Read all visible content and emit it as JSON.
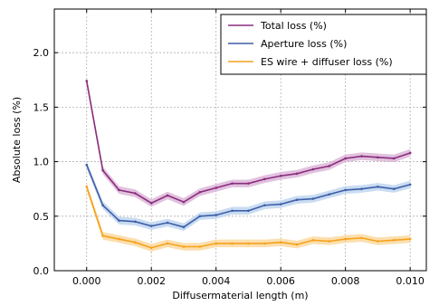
{
  "chart_data": {
    "type": "line",
    "title": "",
    "xlabel": "Diffusermaterial length (m)",
    "ylabel": "Absolute loss (%)",
    "xlim": [
      -0.001,
      0.0105
    ],
    "ylim": [
      0.0,
      2.4
    ],
    "grid": true,
    "legend_position": "top-right",
    "x_ticks": [
      0.0,
      0.002,
      0.004,
      0.006,
      0.008,
      0.01
    ],
    "x_tick_labels": [
      "0.000",
      "0.002",
      "0.004",
      "0.006",
      "0.008",
      "0.010"
    ],
    "y_ticks": [
      0.0,
      0.5,
      1.0,
      1.5,
      2.0
    ],
    "y_tick_labels": [
      "0.0",
      "0.5",
      "1.0",
      "1.5",
      "2.0"
    ],
    "x": [
      0.0,
      0.0005,
      0.001,
      0.0015,
      0.002,
      0.0025,
      0.003,
      0.0035,
      0.004,
      0.0045,
      0.005,
      0.0055,
      0.006,
      0.0065,
      0.007,
      0.0075,
      0.008,
      0.0085,
      0.009,
      0.0095,
      0.01
    ],
    "series": [
      {
        "name": "Total loss (%)",
        "color": "#8b2c7e",
        "band_color": "#d9b3d6",
        "values": [
          1.74,
          0.92,
          0.74,
          0.71,
          0.62,
          0.69,
          0.63,
          0.72,
          0.76,
          0.8,
          0.8,
          0.84,
          0.87,
          0.89,
          0.93,
          0.96,
          1.03,
          1.05,
          1.04,
          1.03,
          1.08
        ]
      },
      {
        "name": "Aperture loss (%)",
        "color": "#3f5fa8",
        "band_color": "#bcd3ef",
        "values": [
          0.97,
          0.6,
          0.46,
          0.45,
          0.41,
          0.44,
          0.4,
          0.5,
          0.51,
          0.55,
          0.55,
          0.6,
          0.61,
          0.65,
          0.66,
          0.7,
          0.74,
          0.75,
          0.77,
          0.75,
          0.79
        ]
      },
      {
        "name": "ES wire + diffuser loss (%)",
        "color": "#f6a11c",
        "band_color": "#fbd79a",
        "values": [
          0.77,
          0.32,
          0.29,
          0.26,
          0.21,
          0.25,
          0.22,
          0.22,
          0.25,
          0.25,
          0.25,
          0.25,
          0.26,
          0.24,
          0.28,
          0.27,
          0.29,
          0.3,
          0.27,
          0.28,
          0.29
        ]
      }
    ]
  }
}
